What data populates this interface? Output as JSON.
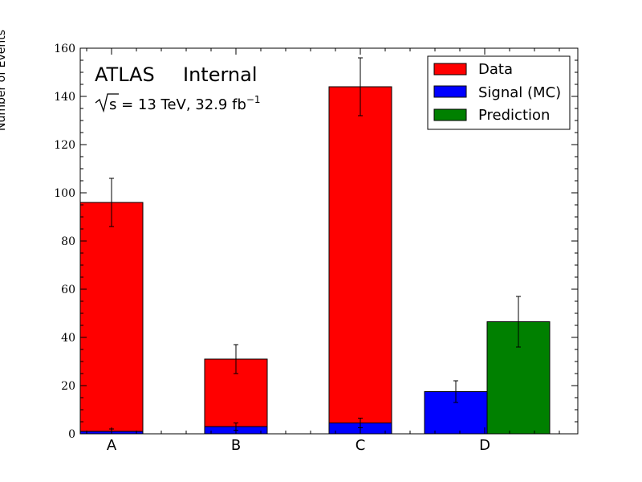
{
  "chart_data": {
    "type": "bar",
    "categories": [
      "A",
      "B",
      "C",
      "D"
    ],
    "ylabel": "Number of Events",
    "ylim": [
      0,
      160
    ],
    "yticks": [
      0,
      20,
      40,
      60,
      80,
      100,
      120,
      140,
      160
    ],
    "ytick_labels": [
      "0",
      "20",
      "40",
      "60",
      "80",
      "100",
      "120",
      "140",
      "160"
    ],
    "grid": false,
    "legend_position": "top-right",
    "annotations": {
      "experiment": "ATLAS",
      "status": "Internal",
      "energy_prefix": "s",
      "energy_text": " = 13 TeV, 32.9 fb",
      "energy_exponent": "−1"
    },
    "colors": {
      "Data": "#ff0000",
      "Signal (MC)": "#0000ff",
      "Prediction": "#008000"
    },
    "series": [
      {
        "name": "Data",
        "values": [
          96,
          31,
          144,
          null
        ],
        "errors": [
          10,
          6,
          12,
          null
        ]
      },
      {
        "name": "Signal (MC)",
        "values": [
          1,
          3,
          4.5,
          17.5
        ],
        "errors": [
          1,
          1.5,
          2,
          4.5
        ]
      },
      {
        "name": "Prediction",
        "values": [
          null,
          null,
          null,
          46.5
        ],
        "errors": [
          null,
          null,
          null,
          10.5
        ]
      }
    ]
  }
}
